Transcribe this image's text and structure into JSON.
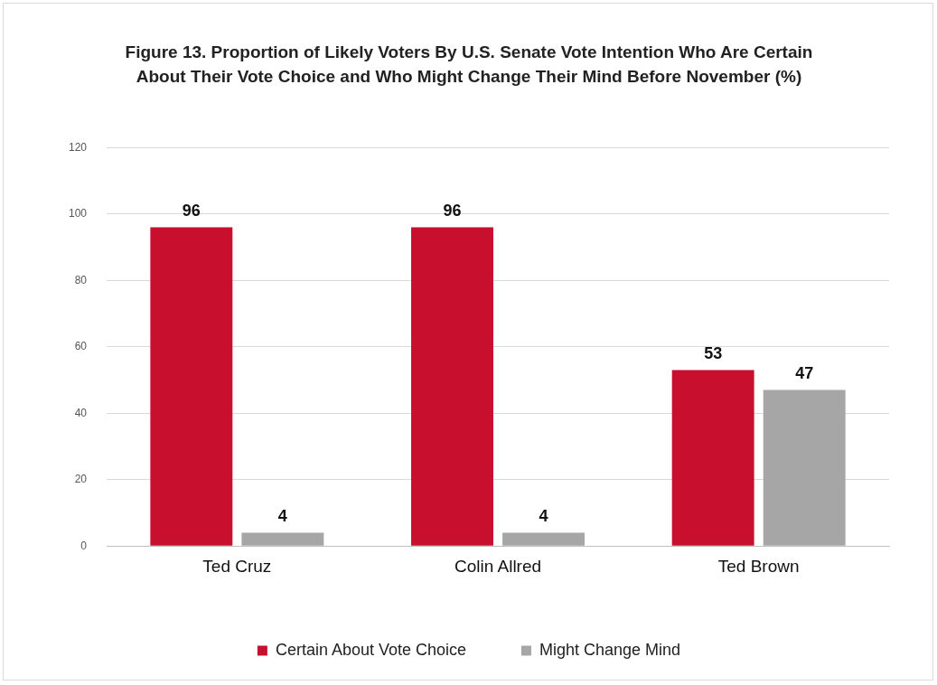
{
  "chart_data": {
    "type": "bar",
    "title": "Figure 13. Proportion of Likely Voters By U.S. Senate Vote Intention Who Are Certain About Their Vote Choice and Who Might Change Their Mind Before November (%)",
    "categories": [
      "Ted Cruz",
      "Colin Allred",
      "Ted Brown"
    ],
    "series": [
      {
        "name": "Certain About Vote Choice",
        "color": "#c8102e",
        "values": [
          96,
          96,
          53
        ]
      },
      {
        "name": "Might Change Mind",
        "color": "#a6a6a6",
        "values": [
          4,
          4,
          47
        ]
      }
    ],
    "ylim": [
      0,
      120
    ],
    "yticks": [
      0,
      20,
      40,
      60,
      80,
      100,
      120
    ],
    "grid": "y",
    "legend": "bottom",
    "data_labels": true
  }
}
